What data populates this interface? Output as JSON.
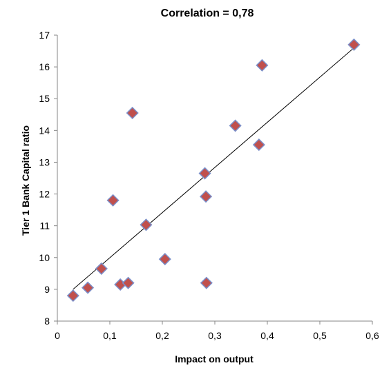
{
  "chart_data": {
    "type": "scatter",
    "title": "Correlation = 0,78",
    "xlabel": "Impact on output",
    "ylabel": "Tier 1 Bank Capital ratio",
    "xlim": [
      0,
      0.6
    ],
    "ylim": [
      8,
      17
    ],
    "x_ticks": [
      0,
      0.1,
      0.2,
      0.3,
      0.4,
      0.5,
      0.6
    ],
    "x_tick_labels": [
      "0",
      "0,1",
      "0,2",
      "0,3",
      "0,4",
      "0,5",
      "0,6"
    ],
    "y_ticks": [
      8,
      9,
      10,
      11,
      12,
      13,
      14,
      15,
      16,
      17
    ],
    "y_tick_labels": [
      "8",
      "9",
      "10",
      "11",
      "12",
      "13",
      "14",
      "15",
      "16",
      "17"
    ],
    "grid": false,
    "legend": "none",
    "marker": "diamond",
    "marker_fill": "#c0504d",
    "marker_edge": "#7b8fc9",
    "trendline_color": "#000000",
    "points": [
      {
        "x": 0.03,
        "y": 8.8
      },
      {
        "x": 0.058,
        "y": 9.05
      },
      {
        "x": 0.084,
        "y": 9.65
      },
      {
        "x": 0.106,
        "y": 11.8
      },
      {
        "x": 0.12,
        "y": 9.15
      },
      {
        "x": 0.135,
        "y": 9.2
      },
      {
        "x": 0.143,
        "y": 14.55
      },
      {
        "x": 0.169,
        "y": 11.03
      },
      {
        "x": 0.205,
        "y": 9.95
      },
      {
        "x": 0.281,
        "y": 12.65
      },
      {
        "x": 0.283,
        "y": 11.92
      },
      {
        "x": 0.284,
        "y": 9.2
      },
      {
        "x": 0.339,
        "y": 14.15
      },
      {
        "x": 0.384,
        "y": 13.55
      },
      {
        "x": 0.39,
        "y": 16.05
      },
      {
        "x": 0.565,
        "y": 16.7
      }
    ],
    "trendline": [
      {
        "x": 0.03,
        "y": 9.0
      },
      {
        "x": 0.565,
        "y": 16.6
      }
    ]
  }
}
